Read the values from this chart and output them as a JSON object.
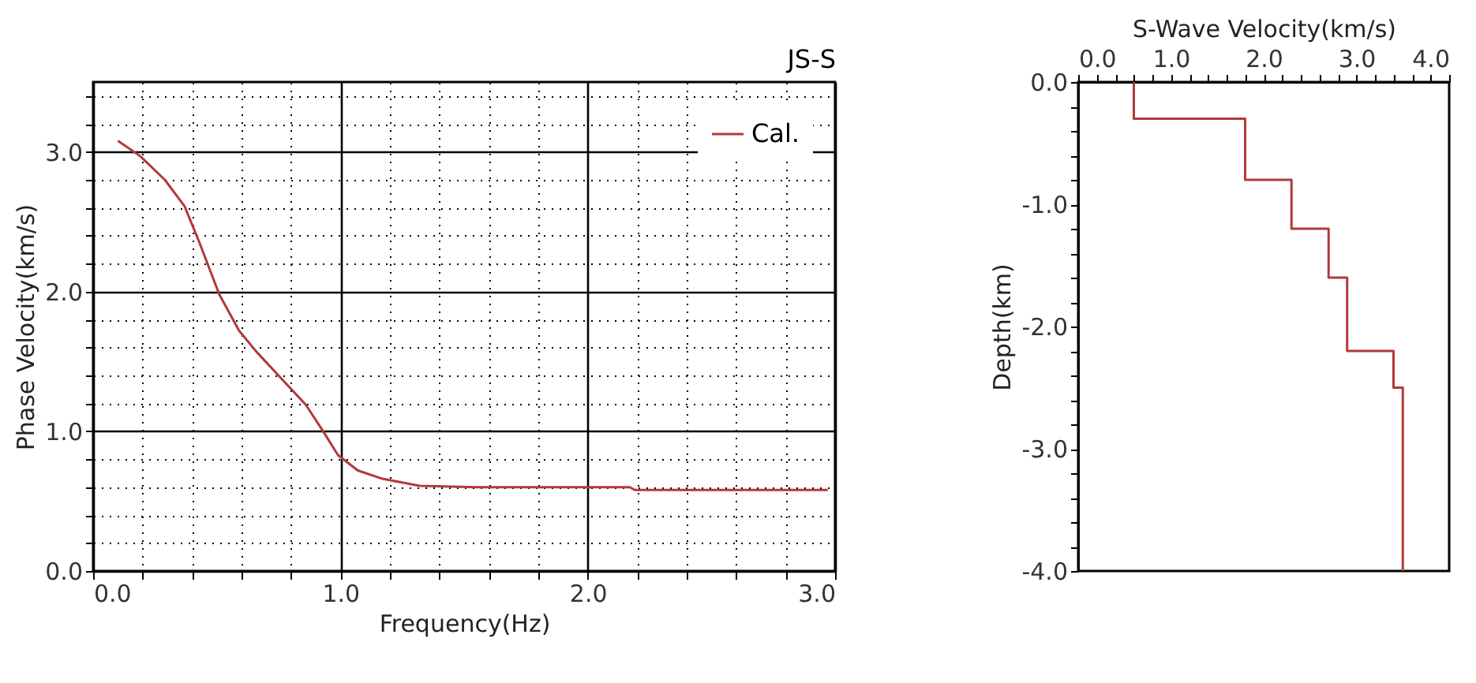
{
  "chart_data": [
    {
      "type": "line",
      "title": "JS-S",
      "xlabel": "Frequency(Hz)",
      "ylabel": "Phase Velocity(km/s)",
      "xlim": [
        0,
        3
      ],
      "ylim": [
        0,
        3.5
      ],
      "xticks": [
        {
          "value": 0,
          "label": "0.0"
        },
        {
          "value": 0.2,
          "label": null
        },
        {
          "value": 0.4,
          "label": null
        },
        {
          "value": 0.6,
          "label": null
        },
        {
          "value": 0.8,
          "label": null
        },
        {
          "value": 1,
          "label": "1.0"
        },
        {
          "value": 1.2,
          "label": null
        },
        {
          "value": 1.4,
          "label": null
        },
        {
          "value": 1.6,
          "label": null
        },
        {
          "value": 1.8,
          "label": null
        },
        {
          "value": 2,
          "label": "2.0"
        },
        {
          "value": 2.2,
          "label": null
        },
        {
          "value": 2.4,
          "label": null
        },
        {
          "value": 2.6,
          "label": null
        },
        {
          "value": 2.8,
          "label": null
        },
        {
          "value": 3,
          "label": "3.0"
        }
      ],
      "yticks": [
        {
          "value": 0,
          "label": "0.0"
        },
        {
          "value": 0.2,
          "label": null
        },
        {
          "value": 0.4,
          "label": null
        },
        {
          "value": 0.6,
          "label": null
        },
        {
          "value": 0.8,
          "label": null
        },
        {
          "value": 1,
          "label": "1.0"
        },
        {
          "value": 1.2,
          "label": null
        },
        {
          "value": 1.4,
          "label": null
        },
        {
          "value": 1.6,
          "label": null
        },
        {
          "value": 1.8,
          "label": null
        },
        {
          "value": 2,
          "label": "2.0"
        },
        {
          "value": 2.2,
          "label": null
        },
        {
          "value": 2.4,
          "label": null
        },
        {
          "value": 2.6,
          "label": null
        },
        {
          "value": 2.8,
          "label": null
        },
        {
          "value": 3,
          "label": "3.0"
        },
        {
          "value": 3.2,
          "label": null
        },
        {
          "value": 3.4,
          "label": null
        }
      ],
      "grid": true,
      "legend": "top right",
      "line_style": "solid",
      "marker": "none",
      "series": [
        {
          "name": "Cal.",
          "color": "#b03a3a",
          "x": [
            0.1,
            0.19,
            0.29,
            0.37,
            0.43,
            0.51,
            0.59,
            0.66,
            0.77,
            0.86,
            0.93,
            0.99,
            1.07,
            1.17,
            1.32,
            1.55,
            2.17,
            2.19,
            2.97
          ],
          "values": [
            3.08,
            2.97,
            2.8,
            2.61,
            2.35,
            1.98,
            1.72,
            1.57,
            1.36,
            1.19,
            1.0,
            0.83,
            0.72,
            0.66,
            0.61,
            0.6,
            0.6,
            0.58,
            0.58
          ]
        }
      ]
    },
    {
      "type": "line",
      "xlabel": "S-Wave Velocity(km/s)",
      "ylabel": "Depth(km)",
      "xlim": [
        0,
        4
      ],
      "ylim": [
        -4,
        0
      ],
      "xticks": [
        {
          "value": 0,
          "label": "0.0"
        },
        {
          "value": 0.2,
          "label": null
        },
        {
          "value": 0.4,
          "label": null
        },
        {
          "value": 0.6,
          "label": null
        },
        {
          "value": 0.8,
          "label": null
        },
        {
          "value": 1,
          "label": "1.0"
        },
        {
          "value": 1.2,
          "label": null
        },
        {
          "value": 1.4,
          "label": null
        },
        {
          "value": 1.6,
          "label": null
        },
        {
          "value": 1.8,
          "label": null
        },
        {
          "value": 2,
          "label": "2.0"
        },
        {
          "value": 2.2,
          "label": null
        },
        {
          "value": 2.4,
          "label": null
        },
        {
          "value": 2.6,
          "label": null
        },
        {
          "value": 2.8,
          "label": null
        },
        {
          "value": 3,
          "label": "3.0"
        },
        {
          "value": 3.2,
          "label": null
        },
        {
          "value": 3.4,
          "label": null
        },
        {
          "value": 3.6,
          "label": null
        },
        {
          "value": 3.8,
          "label": null
        },
        {
          "value": 4,
          "label": "4.0"
        }
      ],
      "yticks": [
        {
          "value": 0,
          "label": "0.0"
        },
        {
          "value": -0.2,
          "label": null
        },
        {
          "value": -0.4,
          "label": null
        },
        {
          "value": -0.6,
          "label": null
        },
        {
          "value": -0.8,
          "label": null
        },
        {
          "value": -1,
          "label": "-1.0"
        },
        {
          "value": -1.2,
          "label": null
        },
        {
          "value": -1.4,
          "label": null
        },
        {
          "value": -1.6,
          "label": null
        },
        {
          "value": -1.8,
          "label": null
        },
        {
          "value": -2,
          "label": "-2.0"
        },
        {
          "value": -2.2,
          "label": null
        },
        {
          "value": -2.4,
          "label": null
        },
        {
          "value": -2.6,
          "label": null
        },
        {
          "value": -2.8,
          "label": null
        },
        {
          "value": -3,
          "label": "-3.0"
        },
        {
          "value": -3.2,
          "label": null
        },
        {
          "value": -3.4,
          "label": null
        },
        {
          "value": -3.6,
          "label": null
        },
        {
          "value": -3.8,
          "label": null
        },
        {
          "value": -4,
          "label": "-4.0"
        }
      ],
      "line_style": "solid",
      "marker": "none",
      "series": [
        {
          "color": "#b03a3a",
          "x": [
            0.6,
            0.6,
            1.8,
            1.8,
            2.3,
            2.3,
            2.7,
            2.7,
            2.9,
            2.9,
            3.4,
            3.4,
            3.5,
            3.5
          ],
          "values": [
            0,
            -0.3,
            -0.3,
            -0.8,
            -0.8,
            -1.2,
            -1.2,
            -1.6,
            -1.6,
            -2.2,
            -2.2,
            -2.5,
            -2.5,
            -4.0
          ]
        }
      ]
    }
  ]
}
